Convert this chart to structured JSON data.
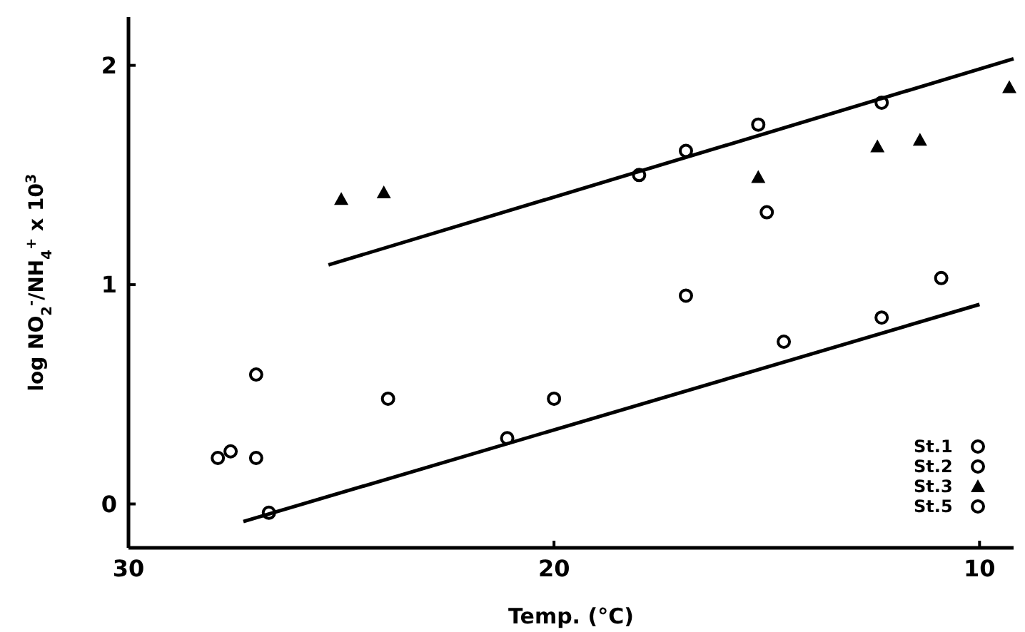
{
  "chart_data": {
    "type": "scatter",
    "xlabel": "Temp. (°C)",
    "ylabel": "log NO$_{2}$$^{-}$/NH$_{4}$$^{+}$ x 10$^{3}$",
    "xlim": [
      30,
      9.2
    ],
    "xticks": [
      30,
      20,
      10
    ],
    "ylim": [
      -0.2,
      2.22
    ],
    "yticks": [
      0,
      1,
      2
    ],
    "grid": false,
    "legend": "bottom right",
    "series": [
      {
        "name": "St.1",
        "color": "#000000",
        "marker": "circle",
        "x": [
          27.0,
          27.0,
          27.6,
          18.0,
          16.9,
          12.3,
          10.9
        ],
        "values": [
          0.59,
          0.21,
          0.24,
          1.5,
          0.95,
          0.85,
          1.03
        ]
      },
      {
        "name": "St.2",
        "color": "#000000",
        "marker": "circle",
        "x": [
          27.9,
          26.7,
          21.1,
          20.0,
          15.2,
          15.0,
          14.6,
          12.3
        ],
        "values": [
          0.21,
          -0.04,
          0.3,
          0.48,
          1.73,
          1.33,
          0.74,
          1.83
        ]
      },
      {
        "name": "St.3",
        "color": "#000000",
        "marker": "triangle",
        "x": [
          25.0,
          24.0,
          15.2,
          12.4,
          11.4,
          9.3
        ],
        "values": [
          1.39,
          1.42,
          1.49,
          1.63,
          1.66,
          1.9
        ]
      },
      {
        "name": "St.5",
        "color": "#000000",
        "marker": "circle",
        "x": [
          23.9,
          16.9
        ],
        "values": [
          0.48,
          1.61
        ]
      },
      {
        "type": "line",
        "color": "#000000",
        "marker": "none",
        "x": [
          25.3,
          9.2
        ],
        "values": [
          1.09,
          2.03
        ]
      },
      {
        "type": "line",
        "color": "#000000",
        "marker": "none",
        "x": [
          27.3,
          10.0
        ],
        "values": [
          -0.08,
          0.91
        ]
      }
    ]
  }
}
